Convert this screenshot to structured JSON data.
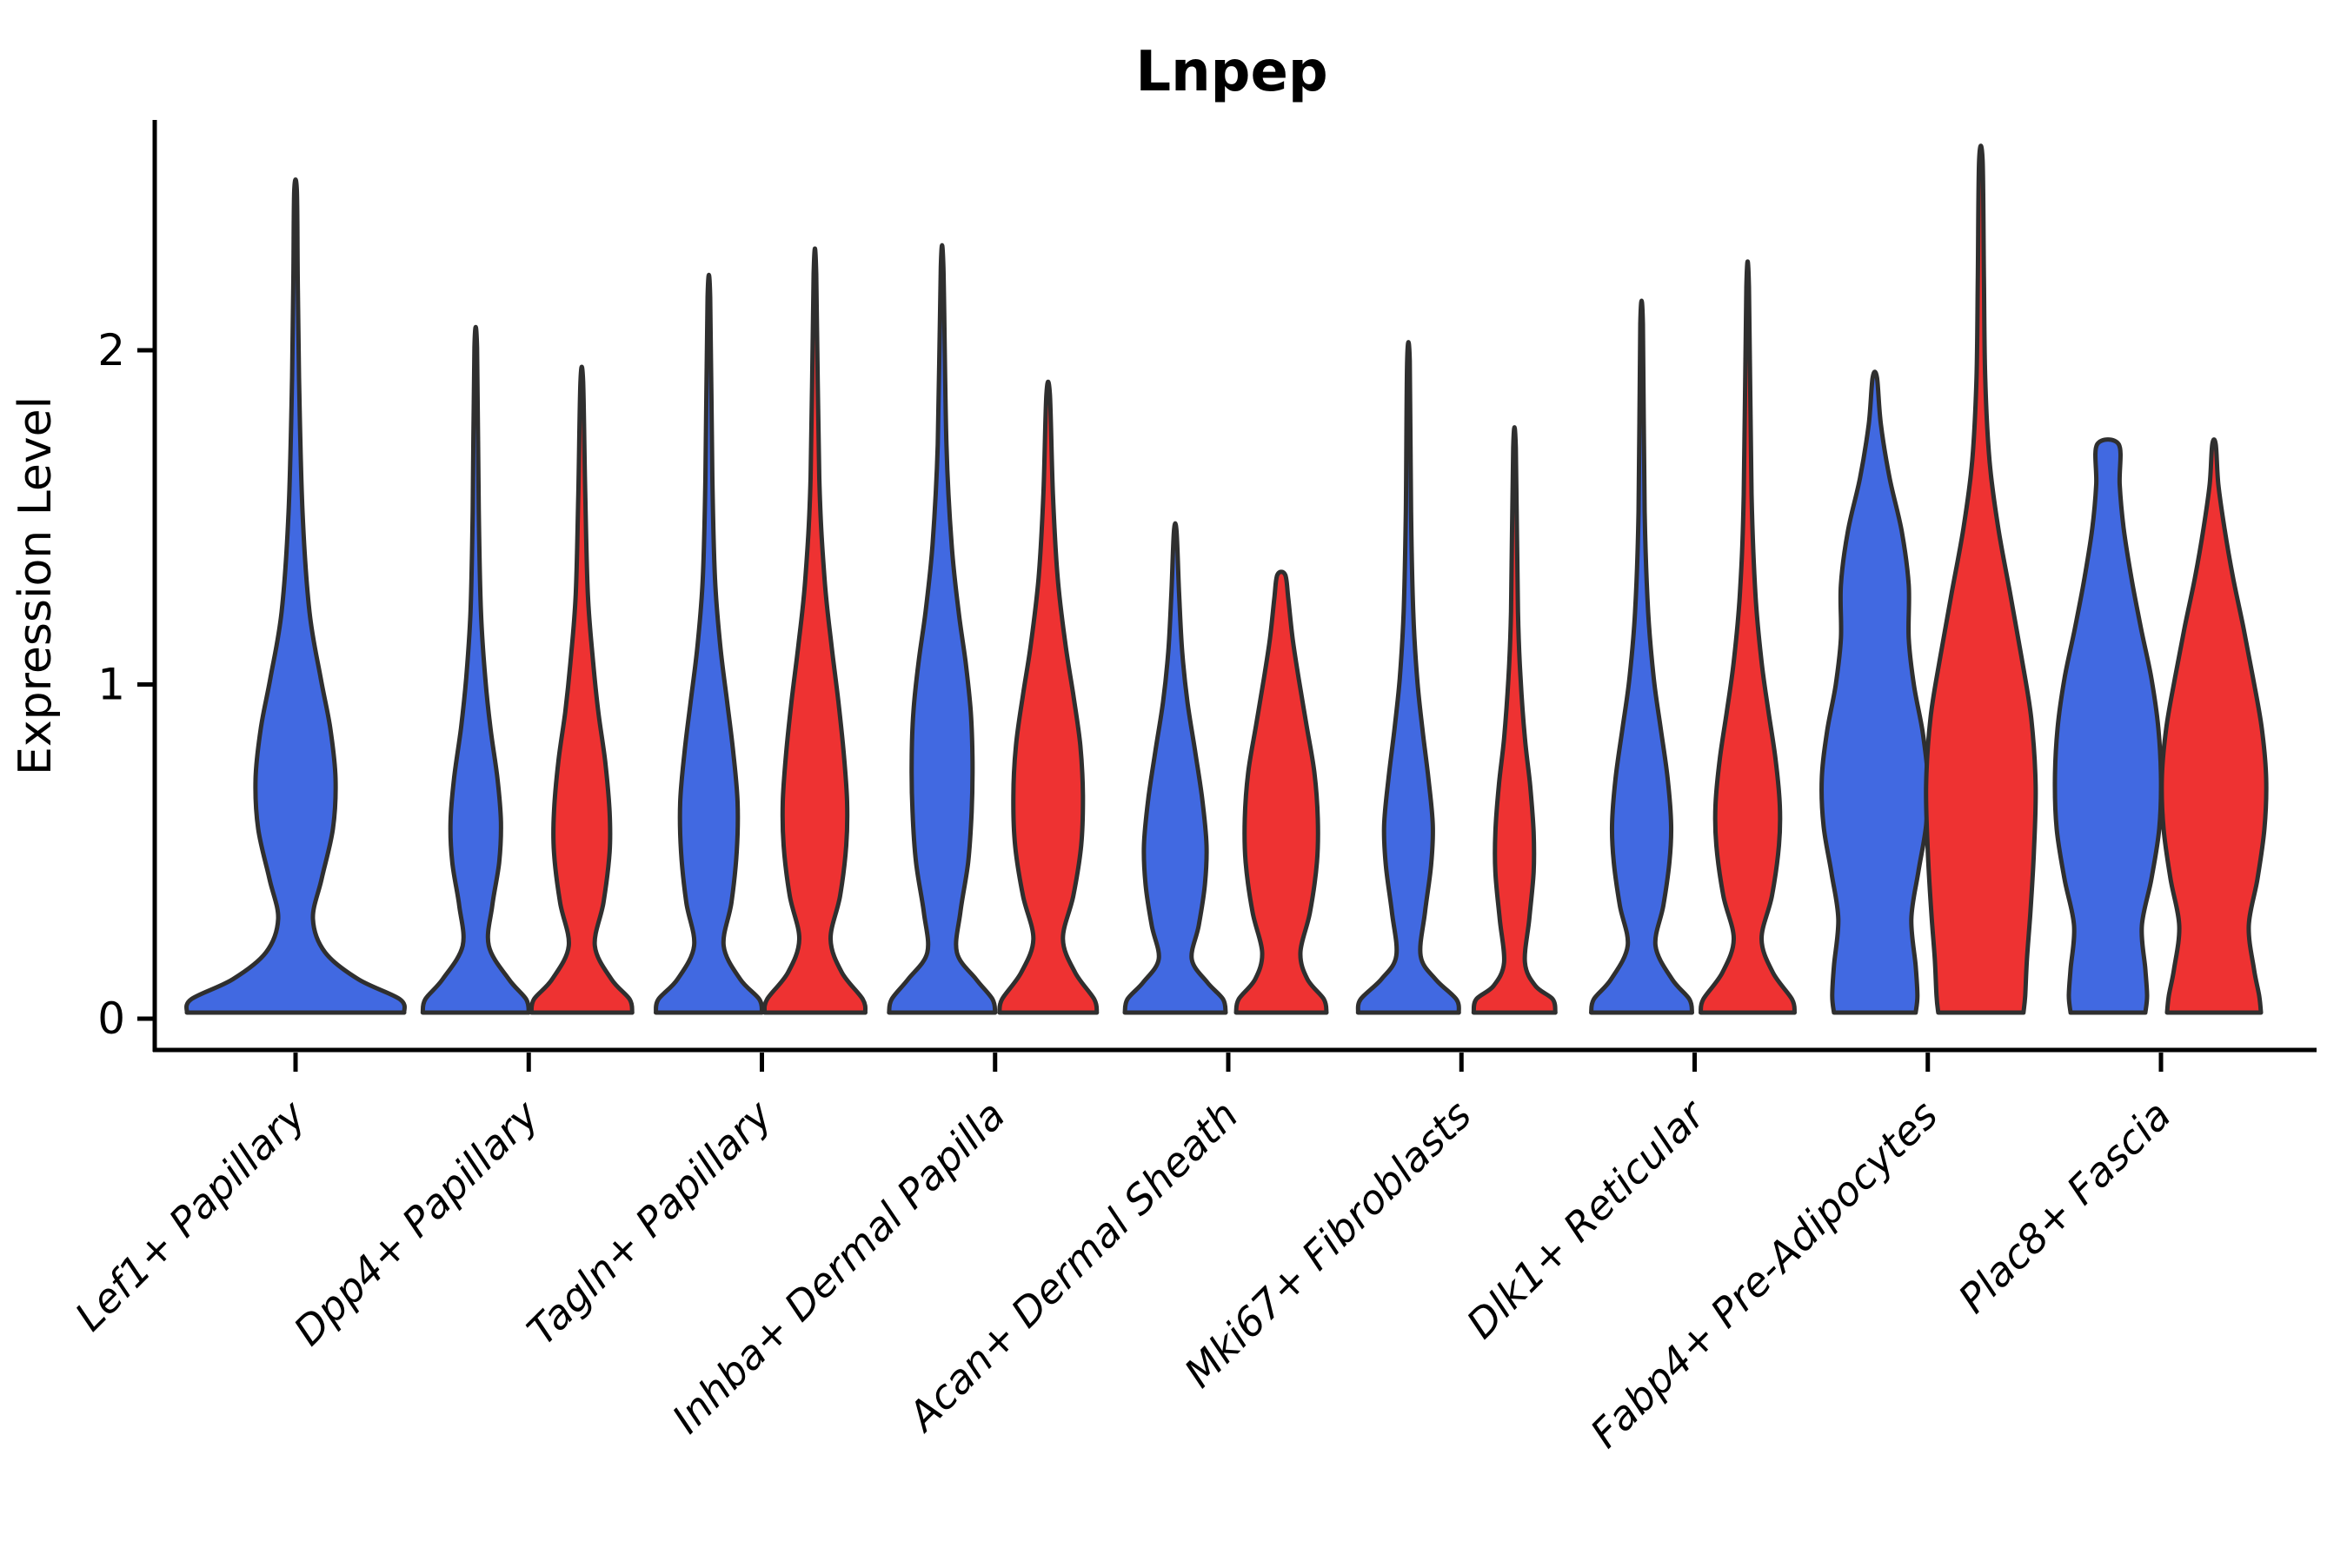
{
  "title": "Lnpep",
  "y_axis": {
    "label": "Expression Level",
    "tick_labels": [
      "0",
      "1",
      "2"
    ]
  },
  "x_axis": {
    "categories": [
      "Lef1+ Papillary",
      "Dpp4+ Papillary",
      "Tagln+ Papillary",
      "Inhba+ Dermal Papilla",
      "Acan+ Dermal Sheath",
      "Mki67+ Fibroblasts",
      "Dlk1+ Reticular",
      "Fabp4+ Pre-Adipocytes",
      "Plac8+ Fascia"
    ]
  },
  "colors": {
    "blue_fill": "#4169E1",
    "red_fill": "#EE3232",
    "violin_outline": "#2F2F2F",
    "axis": "#000000",
    "text": "#000000"
  },
  "chart_data": {
    "type": "violin",
    "title": "Lnpep",
    "xlabel": "",
    "ylabel": "Expression Level",
    "ylim": [
      0,
      2.7
    ],
    "yticks": [
      0,
      1,
      2
    ],
    "grid": false,
    "legend_position": "none",
    "categories": [
      "Lef1+ Papillary",
      "Dpp4+ Papillary",
      "Tagln+ Papillary",
      "Inhba+ Dermal Papilla",
      "Acan+ Dermal Sheath",
      "Mki67+ Fibroblasts",
      "Dlk1+ Reticular",
      "Fabp4+ Pre-Adipocytes",
      "Plac8+ Fascia"
    ],
    "series": [
      {
        "name": "blue",
        "color": "#4169E1",
        "max_expression": [
          2.46,
          1.99,
          2.14,
          2.23,
          1.44,
          1.95,
          2.06,
          1.9,
          1.7
        ]
      },
      {
        "name": "red",
        "color": "#EE3232",
        "max_expression": [
          null,
          1.89,
          2.21,
          1.85,
          1.31,
          1.69,
          2.17,
          2.55,
          1.7
        ]
      }
    ],
    "violins": [
      {
        "category": 0,
        "series": "blue",
        "align": "center",
        "max": 2.46,
        "profile": [
          [
            0,
            125
          ],
          [
            0.04,
            120
          ],
          [
            0.1,
            72
          ],
          [
            0.18,
            34
          ],
          [
            0.28,
            20
          ],
          [
            0.4,
            30
          ],
          [
            0.55,
            43
          ],
          [
            0.7,
            46
          ],
          [
            0.85,
            40
          ],
          [
            1.0,
            29
          ],
          [
            1.2,
            16
          ],
          [
            1.5,
            8
          ],
          [
            1.9,
            4
          ],
          [
            2.2,
            2.5
          ],
          [
            2.46,
            1.5
          ]
        ]
      },
      {
        "category": 1,
        "series": "blue",
        "max": 1.99,
        "profile": [
          [
            0,
            61
          ],
          [
            0.04,
            58
          ],
          [
            0.1,
            38
          ],
          [
            0.2,
            15
          ],
          [
            0.32,
            19
          ],
          [
            0.45,
            27
          ],
          [
            0.57,
            29
          ],
          [
            0.7,
            25
          ],
          [
            0.85,
            17
          ],
          [
            1.0,
            11
          ],
          [
            1.2,
            6
          ],
          [
            1.5,
            3.5
          ],
          [
            1.99,
            1.5
          ]
        ]
      },
      {
        "category": 1,
        "series": "red",
        "max": 1.89,
        "profile": [
          [
            0,
            58
          ],
          [
            0.04,
            55
          ],
          [
            0.1,
            34
          ],
          [
            0.2,
            15
          ],
          [
            0.33,
            25
          ],
          [
            0.48,
            32
          ],
          [
            0.6,
            32
          ],
          [
            0.75,
            27
          ],
          [
            0.9,
            19
          ],
          [
            1.05,
            13
          ],
          [
            1.25,
            7
          ],
          [
            1.55,
            4
          ],
          [
            1.89,
            1.5
          ]
        ]
      },
      {
        "category": 2,
        "series": "blue",
        "max": 2.14,
        "profile": [
          [
            0,
            61
          ],
          [
            0.04,
            58
          ],
          [
            0.1,
            36
          ],
          [
            0.2,
            17
          ],
          [
            0.33,
            26
          ],
          [
            0.48,
            32
          ],
          [
            0.63,
            33
          ],
          [
            0.78,
            28
          ],
          [
            0.93,
            21
          ],
          [
            1.1,
            13
          ],
          [
            1.3,
            7
          ],
          [
            1.6,
            4
          ],
          [
            2.14,
            1.5
          ]
        ]
      },
      {
        "category": 2,
        "series": "red",
        "max": 2.21,
        "profile": [
          [
            0,
            58
          ],
          [
            0.04,
            55
          ],
          [
            0.12,
            31
          ],
          [
            0.22,
            18
          ],
          [
            0.35,
            29
          ],
          [
            0.5,
            36
          ],
          [
            0.63,
            37
          ],
          [
            0.78,
            33
          ],
          [
            0.93,
            27
          ],
          [
            1.1,
            19
          ],
          [
            1.3,
            11
          ],
          [
            1.6,
            5
          ],
          [
            2.21,
            1.5
          ]
        ]
      },
      {
        "category": 3,
        "series": "blue",
        "max": 2.23,
        "profile": [
          [
            0,
            61
          ],
          [
            0.04,
            58
          ],
          [
            0.1,
            39
          ],
          [
            0.18,
            17
          ],
          [
            0.3,
            21
          ],
          [
            0.45,
            30
          ],
          [
            0.6,
            34
          ],
          [
            0.75,
            35
          ],
          [
            0.9,
            33
          ],
          [
            1.05,
            27
          ],
          [
            1.2,
            19
          ],
          [
            1.4,
            11
          ],
          [
            1.7,
            5
          ],
          [
            2.23,
            1.5
          ]
        ]
      },
      {
        "category": 3,
        "series": "red",
        "max": 1.85,
        "profile": [
          [
            0,
            56
          ],
          [
            0.04,
            53
          ],
          [
            0.12,
            31
          ],
          [
            0.22,
            17
          ],
          [
            0.35,
            29
          ],
          [
            0.5,
            38
          ],
          [
            0.65,
            40
          ],
          [
            0.8,
            37
          ],
          [
            0.95,
            29
          ],
          [
            1.1,
            20
          ],
          [
            1.3,
            11
          ],
          [
            1.55,
            5.5
          ],
          [
            1.85,
            2
          ]
        ]
      },
      {
        "category": 4,
        "series": "blue",
        "max": 1.44,
        "profile": [
          [
            0,
            58
          ],
          [
            0.04,
            55
          ],
          [
            0.09,
            37
          ],
          [
            0.16,
            19
          ],
          [
            0.26,
            27
          ],
          [
            0.38,
            34
          ],
          [
            0.5,
            36
          ],
          [
            0.64,
            31
          ],
          [
            0.78,
            23
          ],
          [
            0.93,
            14
          ],
          [
            1.08,
            8
          ],
          [
            1.25,
            4.5
          ],
          [
            1.44,
            1.5
          ]
        ]
      },
      {
        "category": 4,
        "series": "red",
        "max": 1.31,
        "profile": [
          [
            0,
            52
          ],
          [
            0.04,
            49
          ],
          [
            0.1,
            30
          ],
          [
            0.18,
            22
          ],
          [
            0.3,
            33
          ],
          [
            0.45,
            41
          ],
          [
            0.58,
            42
          ],
          [
            0.72,
            38
          ],
          [
            0.86,
            29
          ],
          [
            1.0,
            20
          ],
          [
            1.12,
            13
          ],
          [
            1.24,
            8
          ],
          [
            1.31,
            4.5
          ]
        ]
      },
      {
        "category": 5,
        "series": "blue",
        "max": 1.95,
        "profile": [
          [
            0,
            58
          ],
          [
            0.04,
            55
          ],
          [
            0.1,
            31
          ],
          [
            0.17,
            14
          ],
          [
            0.3,
            19
          ],
          [
            0.44,
            26
          ],
          [
            0.56,
            28
          ],
          [
            0.7,
            23
          ],
          [
            0.85,
            16
          ],
          [
            1.0,
            10
          ],
          [
            1.2,
            5.5
          ],
          [
            1.5,
            3
          ],
          [
            1.95,
            1.5
          ]
        ]
      },
      {
        "category": 5,
        "series": "red",
        "max": 1.69,
        "profile": [
          [
            0,
            47
          ],
          [
            0.04,
            44
          ],
          [
            0.08,
            24
          ],
          [
            0.15,
            12
          ],
          [
            0.28,
            17
          ],
          [
            0.42,
            22
          ],
          [
            0.54,
            22
          ],
          [
            0.68,
            18
          ],
          [
            0.82,
            12
          ],
          [
            1.0,
            7
          ],
          [
            1.2,
            4
          ],
          [
            1.69,
            1.5
          ]
        ]
      },
      {
        "category": 6,
        "series": "blue",
        "max": 2.06,
        "profile": [
          [
            0,
            58
          ],
          [
            0.04,
            55
          ],
          [
            0.1,
            35
          ],
          [
            0.2,
            16
          ],
          [
            0.32,
            25
          ],
          [
            0.45,
            32
          ],
          [
            0.56,
            34
          ],
          [
            0.7,
            30
          ],
          [
            0.85,
            22
          ],
          [
            1.0,
            14
          ],
          [
            1.2,
            7.5
          ],
          [
            1.5,
            3.5
          ],
          [
            2.06,
            1.5
          ]
        ]
      },
      {
        "category": 6,
        "series": "red",
        "max": 2.17,
        "profile": [
          [
            0,
            54
          ],
          [
            0.04,
            51
          ],
          [
            0.12,
            29
          ],
          [
            0.22,
            16
          ],
          [
            0.35,
            28
          ],
          [
            0.5,
            36
          ],
          [
            0.62,
            37
          ],
          [
            0.76,
            32
          ],
          [
            0.9,
            24
          ],
          [
            1.05,
            16
          ],
          [
            1.25,
            9
          ],
          [
            1.55,
            4.5
          ],
          [
            2.17,
            1.5
          ]
        ]
      },
      {
        "category": 7,
        "series": "blue",
        "max": 1.9,
        "profile": [
          [
            0,
            47
          ],
          [
            0.05,
            49
          ],
          [
            0.14,
            47
          ],
          [
            0.28,
            42
          ],
          [
            0.42,
            50
          ],
          [
            0.56,
            59
          ],
          [
            0.7,
            61
          ],
          [
            0.84,
            55
          ],
          [
            0.98,
            45
          ],
          [
            1.12,
            39
          ],
          [
            1.28,
            39
          ],
          [
            1.44,
            31
          ],
          [
            1.6,
            17
          ],
          [
            1.76,
            7
          ],
          [
            1.9,
            2.5
          ]
        ]
      },
      {
        "category": 7,
        "series": "red",
        "max": 2.55,
        "profile": [
          [
            0,
            49
          ],
          [
            0.05,
            51
          ],
          [
            0.16,
            53
          ],
          [
            0.3,
            57
          ],
          [
            0.48,
            61
          ],
          [
            0.68,
            63
          ],
          [
            0.88,
            58
          ],
          [
            1.06,
            47
          ],
          [
            1.25,
            34
          ],
          [
            1.45,
            20
          ],
          [
            1.65,
            10
          ],
          [
            1.9,
            5
          ],
          [
            2.2,
            3.5
          ],
          [
            2.55,
            2
          ]
        ]
      },
      {
        "category": 8,
        "series": "blue",
        "max": 1.7,
        "profile": [
          [
            0,
            43
          ],
          [
            0.05,
            45
          ],
          [
            0.13,
            43
          ],
          [
            0.26,
            39
          ],
          [
            0.4,
            50
          ],
          [
            0.55,
            59
          ],
          [
            0.7,
            61
          ],
          [
            0.85,
            58
          ],
          [
            1.0,
            50
          ],
          [
            1.15,
            38
          ],
          [
            1.3,
            27
          ],
          [
            1.45,
            18
          ],
          [
            1.58,
            13.5
          ],
          [
            1.7,
            12.5
          ]
        ]
      },
      {
        "category": 8,
        "series": "red",
        "max": 1.7,
        "profile": [
          [
            0,
            54
          ],
          [
            0.05,
            52
          ],
          [
            0.13,
            46
          ],
          [
            0.26,
            40
          ],
          [
            0.4,
            50
          ],
          [
            0.55,
            58
          ],
          [
            0.7,
            60
          ],
          [
            0.85,
            55
          ],
          [
            1.0,
            45
          ],
          [
            1.15,
            34
          ],
          [
            1.3,
            22
          ],
          [
            1.45,
            12
          ],
          [
            1.58,
            5
          ],
          [
            1.7,
            2
          ]
        ]
      }
    ]
  }
}
